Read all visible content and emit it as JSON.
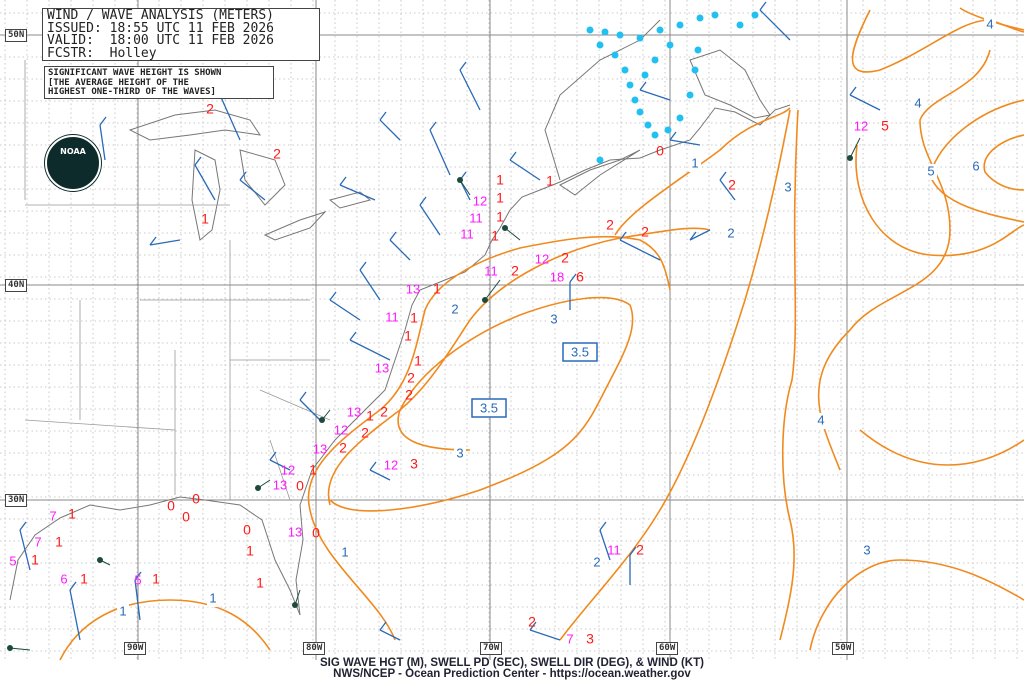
{
  "header": {
    "title": "WIND / WAVE ANALYSIS (METERS)",
    "issued": "ISSUED: 18:55 UTC 11 FEB 2026",
    "valid": "VALID:  18:00 UTC 11 FEB 2026",
    "forecaster": "FCSTR:  Holley"
  },
  "note": {
    "line1": "SIGNIFICANT WAVE HEIGHT IS SHOWN",
    "line2": "[THE AVERAGE HEIGHT OF THE",
    "line3": "HIGHEST ONE-THIRD OF THE WAVES]"
  },
  "logo": {
    "text": "NOAA"
  },
  "lat_labels": [
    "50N",
    "40N",
    "30N"
  ],
  "lon_labels": [
    "90W",
    "80W",
    "70W",
    "60W",
    "50W"
  ],
  "footer": {
    "line1": "SIG WAVE HGT (M), SWELL PD (SEC), SWELL DIR (DEG), & WIND (KT)",
    "line2": "NWS/NCEP - Ocean Prediction Center - https://ocean.weather.gov"
  },
  "colors": {
    "contour": "#f08a1e",
    "contour_label": "#2a6ab8",
    "wave_height": "#ff1a1a",
    "swell_period": "#ff19ff",
    "wind_barb": "#2a6ab8",
    "swell_arrow": "#1c4a3c",
    "sea_ice": "#22c0f0",
    "coastline": "#777777"
  },
  "contour_labels": [
    "4",
    "4",
    "5",
    "6",
    "1",
    "3",
    "2",
    "2",
    "3",
    "3",
    "4",
    "3",
    "1",
    "2",
    "1",
    "1"
  ],
  "boxed_labels": [
    "3.5",
    "3.5"
  ],
  "swell_periods": [
    "12",
    "12",
    "11",
    "11",
    "12",
    "11",
    "18",
    "13",
    "11",
    "13",
    "13",
    "12",
    "13",
    "12",
    "12",
    "13",
    "13",
    "7",
    "7",
    "5",
    "6",
    "5",
    "11",
    "7"
  ],
  "wave_heights": [
    "5",
    "0",
    "2",
    "1",
    "1",
    "1",
    "1",
    "1",
    "2",
    "2",
    "2",
    "6",
    "2",
    "1",
    "1",
    "1",
    "1",
    "2",
    "2",
    "2",
    "1",
    "2",
    "2",
    "3",
    "1",
    "0",
    "0",
    "0",
    "1",
    "1",
    "1",
    "1",
    "1",
    "1",
    "1",
    "0",
    "0",
    "0",
    "2",
    "2",
    "3",
    "2",
    "2",
    "1"
  ]
}
